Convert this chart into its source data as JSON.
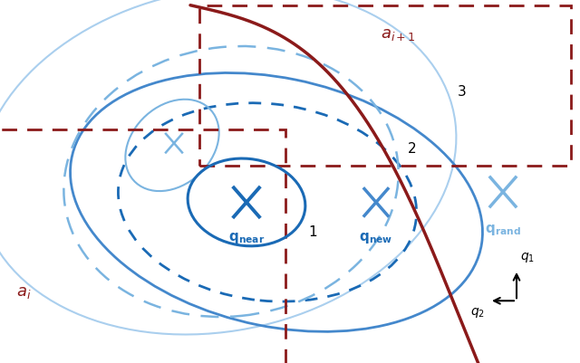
{
  "bg_color": "#f8f8f8",
  "dark_red": "#8B1A1A",
  "blue_dark": "#1a6ab5",
  "blue_mid": "#4488cc",
  "blue_light": "#7ab4e0",
  "blue_xlight": "#aacfee",
  "title": "",
  "labels": {
    "q_near": "q_near",
    "q_new": "q_new",
    "q_rand": "q_rand",
    "a_i": "a_i",
    "a_i1": "a_{i+1}",
    "n1": "1",
    "n2": "2",
    "n3": "3"
  }
}
